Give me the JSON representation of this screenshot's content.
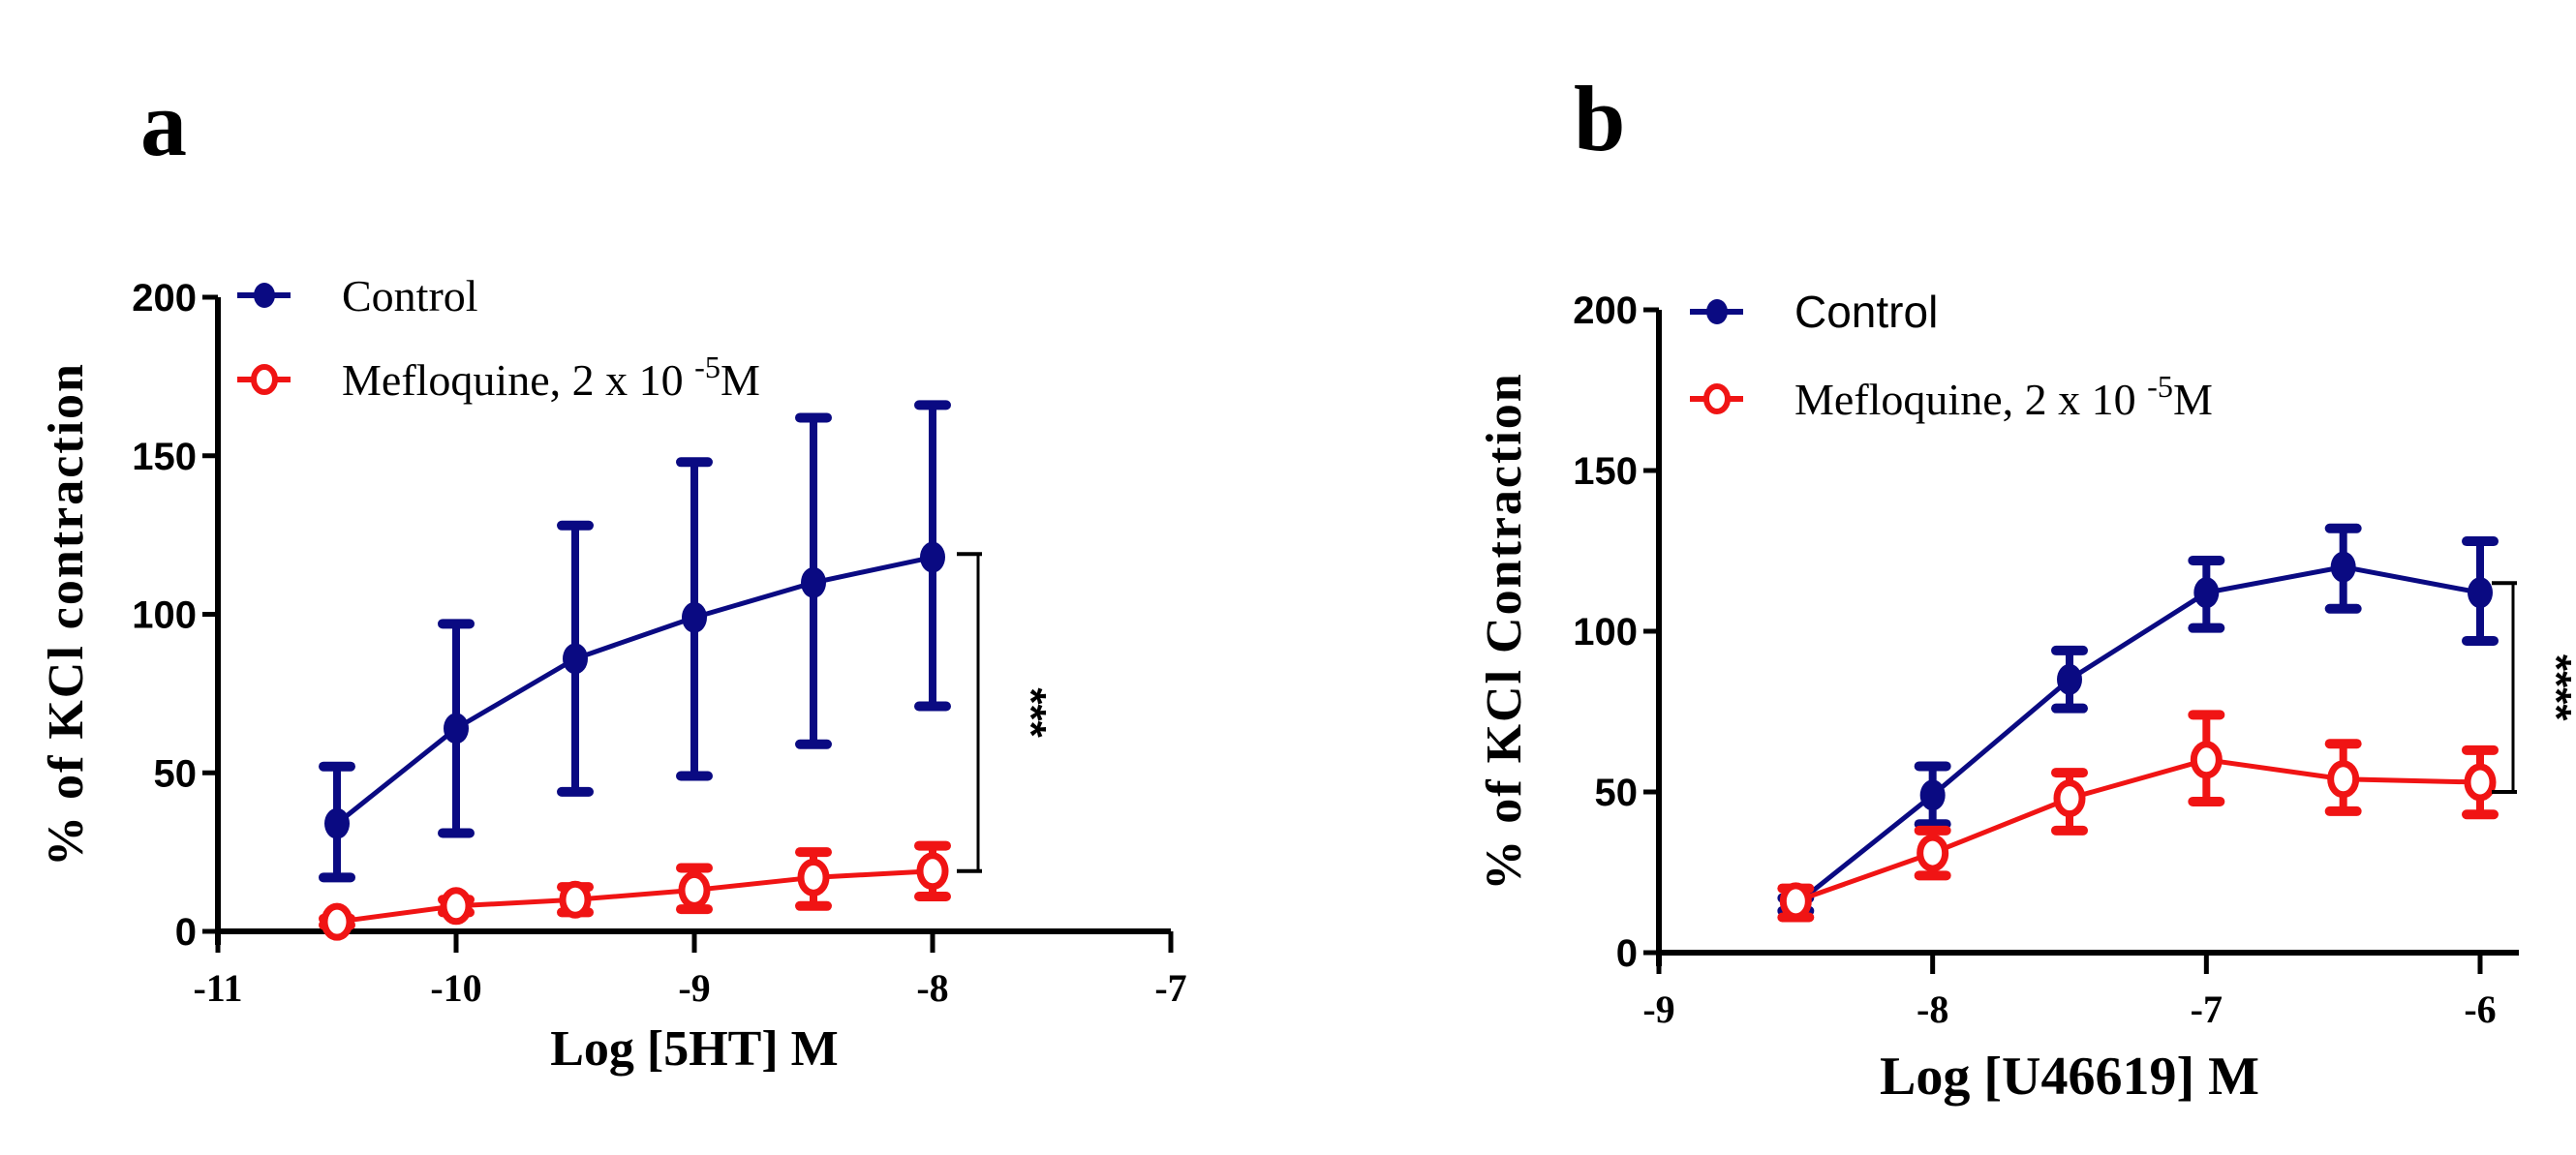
{
  "colors": {
    "control": "#0a0a82",
    "mefloquine": "#f01414",
    "axis": "#000000"
  },
  "chart_data": [
    {
      "panel": "a",
      "type": "line",
      "title": "",
      "xlabel": "Log [5HT] M",
      "ylabel": "% of KCl contraction",
      "xlim": [
        -11,
        -7
      ],
      "ylim": [
        0,
        200
      ],
      "xticks": [
        -11,
        -10,
        -9,
        -8,
        -7
      ],
      "xtick_labels": [
        "-11",
        "-10",
        "-9",
        "-8",
        "-7"
      ],
      "yticks": [
        0,
        50,
        100,
        150,
        200
      ],
      "ytick_labels": [
        "0",
        "50",
        "100",
        "150",
        "200"
      ],
      "grid": false,
      "legend_position": "top-left",
      "legend_font": "serif",
      "x": [
        -10.5,
        -10,
        -9.5,
        -9,
        -8.5,
        -8
      ],
      "series": [
        {
          "name": "Control",
          "marker": "filled-circle",
          "values": [
            34,
            64,
            86,
            99,
            110,
            118
          ],
          "err_upper": [
            52,
            97,
            128,
            148,
            162,
            166
          ],
          "err_lower": [
            17,
            31,
            44,
            49,
            59,
            71
          ]
        },
        {
          "name": "Mefloquine, 2 x 10 -5M",
          "legend_main": "Mefloquine, 2 x 10 ",
          "legend_sup": "-5",
          "legend_tail": "M",
          "marker": "open-circle",
          "values": [
            3,
            8,
            10,
            13,
            17,
            19
          ],
          "err_upper": [
            4,
            10,
            14,
            20,
            25,
            27
          ],
          "err_lower": [
            2,
            6,
            6,
            7,
            8,
            11
          ]
        }
      ],
      "significance": {
        "label": "***",
        "y_top": 119,
        "y_bottom": 19
      }
    },
    {
      "panel": "b",
      "type": "line",
      "title": "",
      "xlabel": "Log [U46619] M",
      "ylabel": "% of KCl Contraction",
      "xlim": [
        -9,
        -6
      ],
      "ylim": [
        0,
        200
      ],
      "xticks": [
        -9,
        -8,
        -7,
        -6
      ],
      "xtick_labels": [
        "-9",
        "-8",
        "-7",
        "-6"
      ],
      "yticks": [
        0,
        50,
        100,
        150,
        200
      ],
      "ytick_labels": [
        "0",
        "50",
        "100",
        "150",
        "200"
      ],
      "grid": false,
      "legend_position": "top-left",
      "legend_font": "sans",
      "x": [
        -8.5,
        -8,
        -7.5,
        -7,
        -6.5,
        -6
      ],
      "series": [
        {
          "name": "Control",
          "marker": "filled-circle",
          "values": [
            15,
            49,
            85,
            112,
            120,
            112
          ],
          "err_upper": [
            17,
            58,
            94,
            122,
            132,
            128
          ],
          "err_lower": [
            13,
            40,
            76,
            101,
            107,
            97
          ]
        },
        {
          "name": "Mefloquine, 2 x 10 -5M",
          "legend_main": "Mefloquine, 2 x 10 ",
          "legend_sup": "-5",
          "legend_tail": "M",
          "marker": "open-circle",
          "values": [
            16,
            31,
            48,
            60,
            54,
            53
          ],
          "err_upper": [
            20,
            38,
            56,
            74,
            65,
            63
          ],
          "err_lower": [
            11,
            24,
            38,
            47,
            44,
            43
          ]
        }
      ],
      "significance": {
        "label": "****",
        "y_top": 115,
        "y_bottom": 50
      }
    }
  ]
}
